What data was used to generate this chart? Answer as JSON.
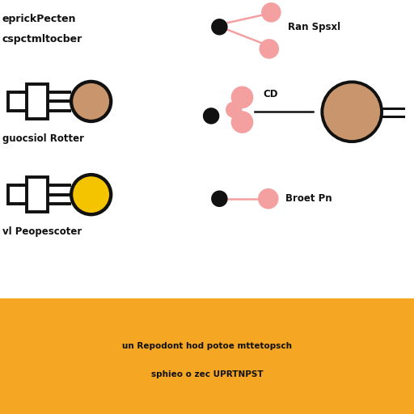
{
  "title_line1": "eprickPecten",
  "title_line2": "cspctmltocber",
  "label_mid_left": "guocsiol Rotter",
  "label_bot_left": "vl Peopescoter",
  "label_top_right": "Ran Spsxl",
  "label_mid_right": "CD",
  "label_bot_right": "Broet Pn",
  "footer_line1": "un Repodont hod potoe mttetopsch",
  "footer_line2": "sphieo o zec UPRTNPST",
  "bg_white": "#ffffff",
  "bg_footer": "#f5a623",
  "color_tan": "#c8956c",
  "color_yellow": "#f5c400",
  "color_pink": "#f4a0a0",
  "color_black": "#111111",
  "color_outline": "#111111"
}
